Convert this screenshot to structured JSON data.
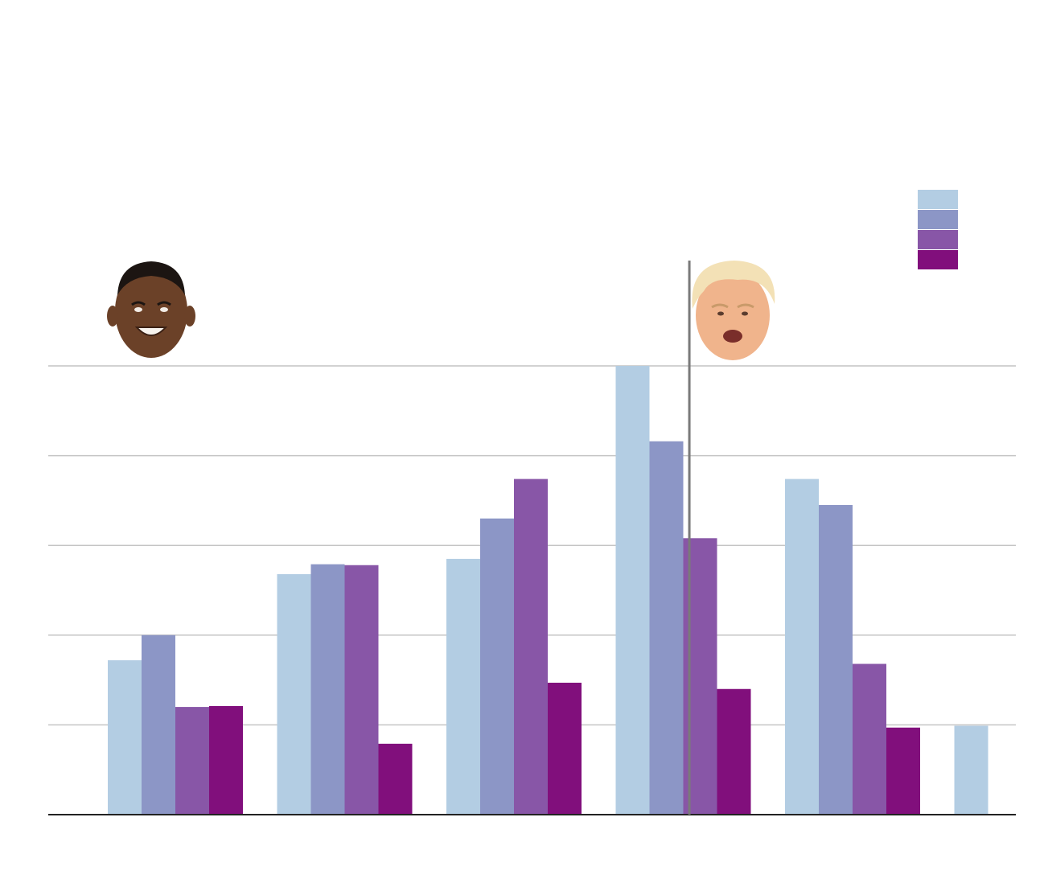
{
  "colors": {
    "q1": "#b3cde3",
    "q2": "#8c96c6",
    "q3": "#8856a7",
    "q4": "#810f7c",
    "grid": "#c4c4c4",
    "axis": "#222222",
    "divider": "#7a7a7a"
  },
  "portraits": {
    "left": {
      "icon": "portrait-left-icon"
    },
    "right": {
      "icon": "portrait-right-icon"
    }
  },
  "chart_data": {
    "type": "bar",
    "ylim": [
      0,
      5
    ],
    "grid": true,
    "legend": "top-right",
    "categories": [
      "",
      "",
      "",
      "",
      "",
      ""
    ],
    "series": [
      {
        "color": "#b3cde3",
        "values": [
          1.72,
          2.68,
          2.85,
          5.0,
          3.74,
          0.99
        ]
      },
      {
        "color": "#8c96c6",
        "values": [
          2.0,
          2.79,
          3.3,
          4.16,
          3.45,
          null
        ]
      },
      {
        "color": "#8856a7",
        "values": [
          1.2,
          2.78,
          3.74,
          3.08,
          1.68,
          null
        ]
      },
      {
        "color": "#810f7c",
        "values": [
          1.21,
          0.79,
          1.47,
          1.4,
          0.97,
          null
        ]
      }
    ],
    "divider_after_category": 3,
    "divider_fraction": 0.545
  }
}
